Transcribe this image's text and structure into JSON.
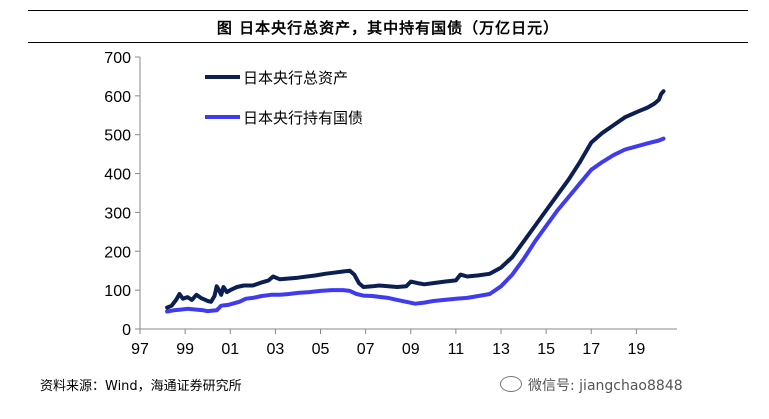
{
  "figure_title": "图 日本央行总资产，其中持有国债（万亿日元）",
  "source_note": "资料来源：Wind，海通证券研究所",
  "watermark": "微信号: jiangchao8848",
  "colors": {
    "total_assets": "#0c1f52",
    "jgb_holdings": "#3f3cf0"
  },
  "chart_data": {
    "type": "line",
    "title": "日本央行总资产，其中持有国债（万亿日元）",
    "unit": "万亿日元",
    "xlabel": "",
    "ylabel": "",
    "x_tick_labels": [
      "97",
      "99",
      "01",
      "03",
      "05",
      "07",
      "09",
      "11",
      "13",
      "15",
      "17",
      "19"
    ],
    "x_tick_years": [
      1997,
      1999,
      2001,
      2003,
      2005,
      2007,
      2009,
      2011,
      2013,
      2015,
      2017,
      2019
    ],
    "xlim": [
      1997,
      2020.8
    ],
    "ylim": [
      0,
      700
    ],
    "y_ticks": [
      0,
      100,
      200,
      300,
      400,
      500,
      600,
      700
    ],
    "grid": false,
    "legend_position": "top-left",
    "series": [
      {
        "name": "日本央行总资产",
        "color": "#0c1f52",
        "points": [
          [
            1998.2,
            55
          ],
          [
            1998.4,
            60
          ],
          [
            1998.6,
            75
          ],
          [
            1998.75,
            90
          ],
          [
            1998.9,
            78
          ],
          [
            1999.1,
            82
          ],
          [
            1999.3,
            75
          ],
          [
            1999.5,
            88
          ],
          [
            1999.7,
            80
          ],
          [
            1999.9,
            75
          ],
          [
            2000.0,
            72
          ],
          [
            2000.15,
            70
          ],
          [
            2000.3,
            85
          ],
          [
            2000.4,
            110
          ],
          [
            2000.5,
            100
          ],
          [
            2000.6,
            88
          ],
          [
            2000.7,
            108
          ],
          [
            2000.85,
            95
          ],
          [
            2001.0,
            100
          ],
          [
            2001.3,
            108
          ],
          [
            2001.6,
            112
          ],
          [
            2002.0,
            112
          ],
          [
            2002.4,
            120
          ],
          [
            2002.7,
            125
          ],
          [
            2002.9,
            135
          ],
          [
            2003.2,
            128
          ],
          [
            2003.6,
            130
          ],
          [
            2004.0,
            132
          ],
          [
            2004.4,
            135
          ],
          [
            2004.8,
            138
          ],
          [
            2005.2,
            142
          ],
          [
            2005.6,
            145
          ],
          [
            2006.0,
            148
          ],
          [
            2006.3,
            150
          ],
          [
            2006.5,
            140
          ],
          [
            2006.7,
            118
          ],
          [
            2006.9,
            108
          ],
          [
            2007.3,
            110
          ],
          [
            2007.6,
            112
          ],
          [
            2008.0,
            110
          ],
          [
            2008.4,
            108
          ],
          [
            2008.8,
            110
          ],
          [
            2009.0,
            122
          ],
          [
            2009.3,
            118
          ],
          [
            2009.6,
            115
          ],
          [
            2010.0,
            118
          ],
          [
            2010.5,
            122
          ],
          [
            2011.0,
            125
          ],
          [
            2011.2,
            140
          ],
          [
            2011.5,
            135
          ],
          [
            2012.0,
            138
          ],
          [
            2012.5,
            142
          ],
          [
            2013.0,
            158
          ],
          [
            2013.5,
            185
          ],
          [
            2014.0,
            225
          ],
          [
            2014.5,
            265
          ],
          [
            2015.0,
            305
          ],
          [
            2015.5,
            345
          ],
          [
            2016.0,
            385
          ],
          [
            2016.5,
            430
          ],
          [
            2017.0,
            480
          ],
          [
            2017.5,
            505
          ],
          [
            2018.0,
            525
          ],
          [
            2018.5,
            545
          ],
          [
            2019.0,
            558
          ],
          [
            2019.5,
            570
          ],
          [
            2019.8,
            580
          ],
          [
            2020.0,
            590
          ],
          [
            2020.1,
            605
          ],
          [
            2020.2,
            612
          ]
        ]
      },
      {
        "name": "日本央行持有国债",
        "color": "#3f3cf0",
        "points": [
          [
            1998.2,
            45
          ],
          [
            1998.5,
            48
          ],
          [
            1998.8,
            50
          ],
          [
            1999.1,
            52
          ],
          [
            1999.5,
            50
          ],
          [
            1999.8,
            48
          ],
          [
            2000.0,
            46
          ],
          [
            2000.4,
            48
          ],
          [
            2000.6,
            60
          ],
          [
            2000.9,
            62
          ],
          [
            2001.1,
            65
          ],
          [
            2001.4,
            70
          ],
          [
            2001.7,
            78
          ],
          [
            2002.0,
            80
          ],
          [
            2002.4,
            85
          ],
          [
            2002.8,
            88
          ],
          [
            2003.2,
            88
          ],
          [
            2003.6,
            90
          ],
          [
            2004.0,
            93
          ],
          [
            2004.5,
            95
          ],
          [
            2005.0,
            98
          ],
          [
            2005.5,
            100
          ],
          [
            2006.0,
            100
          ],
          [
            2006.3,
            98
          ],
          [
            2006.6,
            90
          ],
          [
            2006.9,
            86
          ],
          [
            2007.3,
            85
          ],
          [
            2007.7,
            82
          ],
          [
            2008.0,
            80
          ],
          [
            2008.4,
            75
          ],
          [
            2008.8,
            70
          ],
          [
            2009.2,
            65
          ],
          [
            2009.6,
            68
          ],
          [
            2010.0,
            72
          ],
          [
            2010.5,
            75
          ],
          [
            2011.0,
            78
          ],
          [
            2011.5,
            80
          ],
          [
            2012.0,
            85
          ],
          [
            2012.5,
            90
          ],
          [
            2013.0,
            110
          ],
          [
            2013.5,
            140
          ],
          [
            2014.0,
            180
          ],
          [
            2014.5,
            225
          ],
          [
            2015.0,
            265
          ],
          [
            2015.5,
            305
          ],
          [
            2016.0,
            340
          ],
          [
            2016.5,
            375
          ],
          [
            2017.0,
            410
          ],
          [
            2017.5,
            430
          ],
          [
            2018.0,
            448
          ],
          [
            2018.5,
            462
          ],
          [
            2019.0,
            470
          ],
          [
            2019.5,
            478
          ],
          [
            2020.0,
            485
          ],
          [
            2020.2,
            490
          ]
        ]
      }
    ]
  }
}
